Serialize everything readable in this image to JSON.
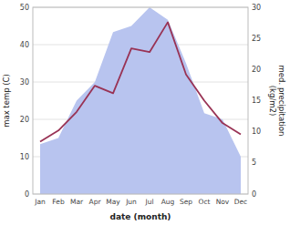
{
  "chart_data": {
    "type": "line",
    "categories": [
      "Jan",
      "Feb",
      "Mar",
      "Apr",
      "May",
      "Jun",
      "Jul",
      "Aug",
      "Sep",
      "Oct",
      "Nov",
      "Dec"
    ],
    "series": [
      {
        "type": "area",
        "axis": "y2",
        "color": "#b8c4ef",
        "values": [
          8,
          9,
          15,
          18,
          26,
          27,
          30,
          28,
          21,
          13,
          12,
          6
        ]
      },
      {
        "type": "line",
        "color": "#993355",
        "values": [
          14,
          17,
          22,
          29,
          27,
          39,
          38,
          46,
          32,
          25,
          19,
          16
        ]
      }
    ],
    "xlabel": "date (month)",
    "ylabel": "max temp (C)",
    "y2label": "med. precipitation\n(kg/m2)",
    "ylim": [
      0,
      50
    ],
    "yticks": [
      0,
      10,
      20,
      30,
      40,
      50
    ],
    "y2lim": [
      0,
      30
    ],
    "y2ticks": [
      0,
      5,
      10,
      15,
      20,
      25,
      30
    ],
    "grid": true
  }
}
